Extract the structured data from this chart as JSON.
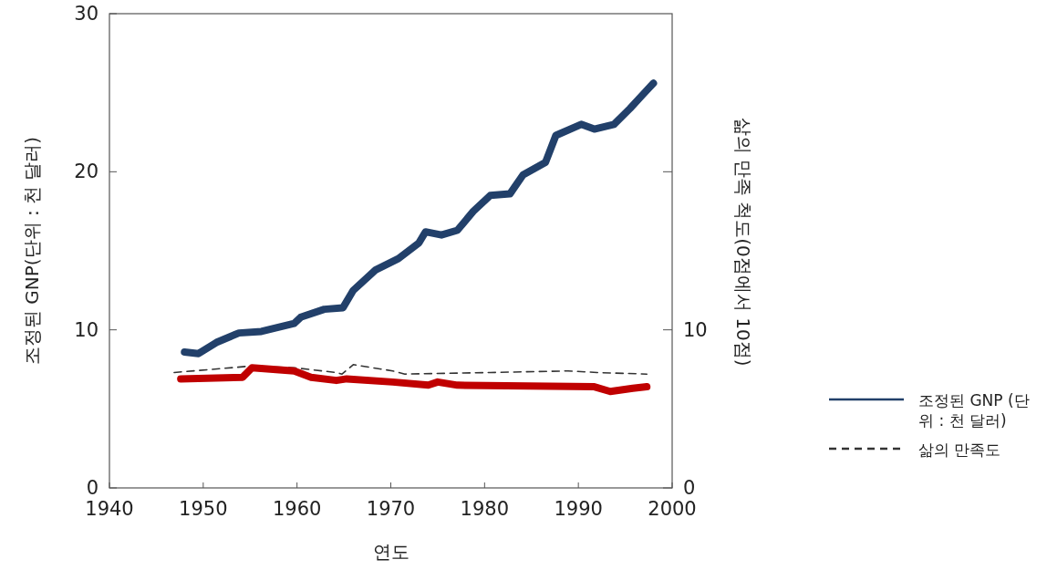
{
  "chart_data": {
    "type": "line",
    "xlabel": "연도",
    "ylabel": "조정된 GNP(단위 : 천 달러)",
    "y2label": "삶의 만족 척도(0점에서 10점)",
    "xlim": [
      1940,
      2000
    ],
    "xticks": [
      1940,
      1950,
      1960,
      1970,
      1980,
      1990,
      2000
    ],
    "ylim": [
      0,
      30
    ],
    "yticks": [
      0,
      10,
      20,
      30
    ],
    "y2lim": [
      0,
      30
    ],
    "y2ticks": [
      0,
      10,
      {
        "value": 20,
        "label": null
      }
    ],
    "grid": false,
    "legend": "right",
    "marker": "none",
    "series": [
      {
        "name": "조정된 GNP (단위 : 천 달러)",
        "color": "#22406a",
        "line_style": "solid",
        "x": [
          1948,
          1949.5,
          1951.4,
          1953.8,
          1956.2,
          1959.7,
          1960.4,
          1962.9,
          1964.9,
          1966.0,
          1968.4,
          1970.8,
          1973.0,
          1973.7,
          1975.4,
          1977.1,
          1978.8,
          1980.6,
          1982.7,
          1984.1,
          1986.5,
          1987.6,
          1990.3,
          1991.7,
          1993.8,
          1995.5,
          1996.9,
          1998.0
        ],
        "values": [
          8.6,
          8.5,
          9.2,
          9.8,
          9.9,
          10.4,
          10.8,
          11.3,
          11.4,
          12.5,
          13.8,
          14.5,
          15.5,
          16.2,
          16.0,
          16.3,
          17.5,
          18.5,
          18.6,
          19.8,
          20.6,
          22.3,
          23.0,
          22.7,
          23.0,
          24.0,
          24.9,
          25.6
        ]
      },
      {
        "name": "삶의 만족도",
        "color": "#333333",
        "line_style": "dashed",
        "x": [
          1946.9,
          1954.9,
          1959.7,
          1964.2,
          1964.8,
          1966.0,
          1970.2,
          1971.5,
          1980.6,
          1988.9,
          1992.0,
          1997.3
        ],
        "values": [
          7.3,
          7.7,
          7.6,
          7.3,
          7.2,
          7.8,
          7.4,
          7.2,
          7.3,
          7.4,
          7.3,
          7.2
        ]
      },
      {
        "color": "#c00000",
        "line_style": "solid",
        "x": [
          1947.6,
          1954.2,
          1955.2,
          1959.7,
          1961.5,
          1964.2,
          1965.3,
          1970.2,
          1974.0,
          1975.0,
          1977.1,
          1991.7,
          1993.4,
          1995.8,
          1997.3
        ],
        "values": [
          6.9,
          7.0,
          7.6,
          7.4,
          7.0,
          6.8,
          6.9,
          6.7,
          6.5,
          6.7,
          6.5,
          6.4,
          6.1,
          6.3,
          6.4
        ]
      }
    ]
  }
}
